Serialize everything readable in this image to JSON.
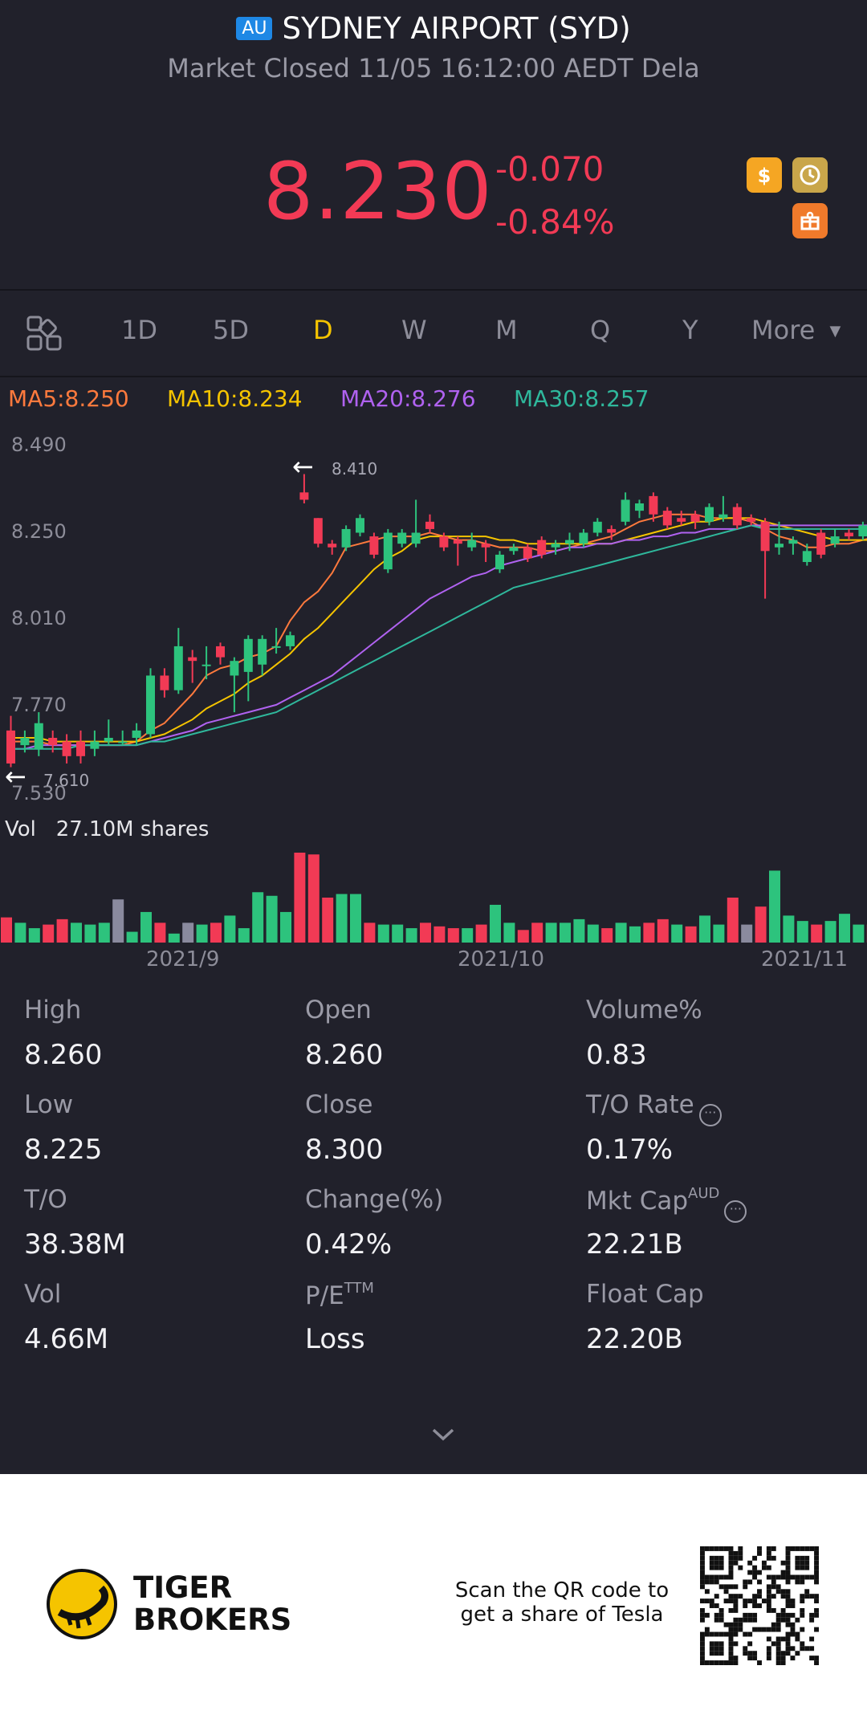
{
  "header": {
    "market_badge": "AU",
    "title": "SYDNEY AIRPORT (SYD)",
    "subtitle": "Market Closed 11/05 16:12:00 AEDT Dela"
  },
  "quote": {
    "price": "8.230",
    "change": "-0.070",
    "change_pct": "-0.84%",
    "icons": [
      "dollar-icon",
      "history-icon",
      "gift-icon"
    ]
  },
  "tabs": {
    "layout_icon": "grid-icon",
    "items": [
      "1D",
      "5D",
      "D",
      "W",
      "M",
      "Q",
      "Y"
    ],
    "active": "D",
    "more_label": "More"
  },
  "indicators": [
    {
      "label": "MA5:8.250",
      "color": "#ff7a3d"
    },
    {
      "label": "MA10:8.234",
      "color": "#f5c400"
    },
    {
      "label": "MA20:8.276",
      "color": "#b062f0"
    },
    {
      "label": "MA30:8.257",
      "color": "#2fb89c"
    }
  ],
  "chart_data": {
    "type": "candlestick",
    "title": "",
    "y_ticks": [
      "8.490",
      "8.250",
      "8.010",
      "7.770",
      "7.530"
    ],
    "ylim": [
      7.53,
      8.49
    ],
    "x_ticks": [
      "2021/9",
      "2021/10",
      "2021/11"
    ],
    "max_label": "8.410",
    "min_label": "7.610",
    "colors": {
      "up": "#2dc37d",
      "down": "#f23a55",
      "flat": "#8a8a9e"
    },
    "candles": [
      {
        "o": 7.71,
        "c": 7.62,
        "h": 7.75,
        "l": 7.61
      },
      {
        "o": 7.67,
        "c": 7.69,
        "h": 7.71,
        "l": 7.65
      },
      {
        "o": 7.66,
        "c": 7.73,
        "h": 7.76,
        "l": 7.64
      },
      {
        "o": 7.69,
        "c": 7.67,
        "h": 7.71,
        "l": 7.65
      },
      {
        "o": 7.68,
        "c": 7.64,
        "h": 7.7,
        "l": 7.62
      },
      {
        "o": 7.68,
        "c": 7.64,
        "h": 7.71,
        "l": 7.62
      },
      {
        "o": 7.66,
        "c": 7.68,
        "h": 7.71,
        "l": 7.64
      },
      {
        "o": 7.68,
        "c": 7.69,
        "h": 7.74,
        "l": 7.67
      },
      {
        "o": 7.68,
        "c": 7.68,
        "h": 7.71,
        "l": 7.67
      },
      {
        "o": 7.69,
        "c": 7.71,
        "h": 7.73,
        "l": 7.67
      },
      {
        "o": 7.7,
        "c": 7.86,
        "h": 7.88,
        "l": 7.69
      },
      {
        "o": 7.86,
        "c": 7.82,
        "h": 7.88,
        "l": 7.8
      },
      {
        "o": 7.82,
        "c": 7.94,
        "h": 7.99,
        "l": 7.81
      },
      {
        "o": 7.91,
        "c": 7.9,
        "h": 7.93,
        "l": 7.84
      },
      {
        "o": 7.89,
        "c": 7.89,
        "h": 7.94,
        "l": 7.85
      },
      {
        "o": 7.94,
        "c": 7.91,
        "h": 7.95,
        "l": 7.89
      },
      {
        "o": 7.86,
        "c": 7.9,
        "h": 7.91,
        "l": 7.76
      },
      {
        "o": 7.87,
        "c": 7.96,
        "h": 7.97,
        "l": 7.79
      },
      {
        "o": 7.89,
        "c": 7.96,
        "h": 7.97,
        "l": 7.86
      },
      {
        "o": 7.94,
        "c": 7.94,
        "h": 7.99,
        "l": 7.92
      },
      {
        "o": 7.94,
        "c": 7.97,
        "h": 7.98,
        "l": 7.93
      },
      {
        "o": 8.36,
        "c": 8.34,
        "h": 8.41,
        "l": 8.33
      },
      {
        "o": 8.29,
        "c": 8.22,
        "h": 8.29,
        "l": 8.21
      },
      {
        "o": 8.22,
        "c": 8.21,
        "h": 8.23,
        "l": 8.19
      },
      {
        "o": 8.21,
        "c": 8.26,
        "h": 8.27,
        "l": 8.2
      },
      {
        "o": 8.25,
        "c": 8.29,
        "h": 8.3,
        "l": 8.24
      },
      {
        "o": 8.24,
        "c": 8.19,
        "h": 8.25,
        "l": 8.18
      },
      {
        "o": 8.15,
        "c": 8.25,
        "h": 8.26,
        "l": 8.14
      },
      {
        "o": 8.22,
        "c": 8.25,
        "h": 8.26,
        "l": 8.21
      },
      {
        "o": 8.22,
        "c": 8.25,
        "h": 8.34,
        "l": 8.21
      },
      {
        "o": 8.28,
        "c": 8.26,
        "h": 8.3,
        "l": 8.25
      },
      {
        "o": 8.24,
        "c": 8.21,
        "h": 8.25,
        "l": 8.2
      },
      {
        "o": 8.23,
        "c": 8.22,
        "h": 8.24,
        "l": 8.16
      },
      {
        "o": 8.21,
        "c": 8.23,
        "h": 8.25,
        "l": 8.2
      },
      {
        "o": 8.22,
        "c": 8.21,
        "h": 8.23,
        "l": 8.17
      },
      {
        "o": 8.15,
        "c": 8.19,
        "h": 8.2,
        "l": 8.14
      },
      {
        "o": 8.2,
        "c": 8.21,
        "h": 8.22,
        "l": 8.19
      },
      {
        "o": 8.21,
        "c": 8.18,
        "h": 8.22,
        "l": 8.17
      },
      {
        "o": 8.23,
        "c": 8.19,
        "h": 8.24,
        "l": 8.18
      },
      {
        "o": 8.21,
        "c": 8.22,
        "h": 8.23,
        "l": 8.19
      },
      {
        "o": 8.22,
        "c": 8.23,
        "h": 8.25,
        "l": 8.2
      },
      {
        "o": 8.22,
        "c": 8.25,
        "h": 8.26,
        "l": 8.21
      },
      {
        "o": 8.25,
        "c": 8.28,
        "h": 8.29,
        "l": 8.24
      },
      {
        "o": 8.26,
        "c": 8.25,
        "h": 8.27,
        "l": 8.23
      },
      {
        "o": 8.28,
        "c": 8.34,
        "h": 8.36,
        "l": 8.27
      },
      {
        "o": 8.31,
        "c": 8.33,
        "h": 8.34,
        "l": 8.29
      },
      {
        "o": 8.35,
        "c": 8.3,
        "h": 8.36,
        "l": 8.28
      },
      {
        "o": 8.31,
        "c": 8.27,
        "h": 8.32,
        "l": 8.26
      },
      {
        "o": 8.29,
        "c": 8.28,
        "h": 8.31,
        "l": 8.27
      },
      {
        "o": 8.3,
        "c": 8.28,
        "h": 8.31,
        "l": 8.26
      },
      {
        "o": 8.28,
        "c": 8.32,
        "h": 8.33,
        "l": 8.27
      },
      {
        "o": 8.29,
        "c": 8.3,
        "h": 8.35,
        "l": 8.28
      },
      {
        "o": 8.32,
        "c": 8.27,
        "h": 8.33,
        "l": 8.26
      },
      {
        "o": 8.29,
        "c": 8.28,
        "h": 8.3,
        "l": 8.27
      },
      {
        "o": 8.28,
        "c": 8.2,
        "h": 8.29,
        "l": 8.07
      },
      {
        "o": 8.21,
        "c": 8.22,
        "h": 8.28,
        "l": 8.19
      },
      {
        "o": 8.22,
        "c": 8.23,
        "h": 8.24,
        "l": 8.19
      },
      {
        "o": 8.17,
        "c": 8.2,
        "h": 8.22,
        "l": 8.16
      },
      {
        "o": 8.25,
        "c": 8.19,
        "h": 8.26,
        "l": 8.18
      },
      {
        "o": 8.22,
        "c": 8.24,
        "h": 8.26,
        "l": 8.21
      },
      {
        "o": 8.25,
        "c": 8.24,
        "h": 8.26,
        "l": 8.23
      },
      {
        "o": 8.24,
        "c": 8.27,
        "h": 8.28,
        "l": 8.23
      },
      {
        "o": 8.25,
        "c": 8.23,
        "h": 8.26,
        "l": 8.22
      }
    ],
    "ma_series": [
      {
        "name": "MA5",
        "color": "#ff7a3d",
        "values": [
          7.68,
          7.68,
          7.68,
          7.67,
          7.67,
          7.67,
          7.67,
          7.67,
          7.67,
          7.68,
          7.71,
          7.73,
          7.77,
          7.81,
          7.86,
          7.88,
          7.89,
          7.91,
          7.92,
          7.94,
          8.01,
          8.06,
          8.09,
          8.14,
          8.21,
          8.22,
          8.23,
          8.24,
          8.24,
          8.24,
          8.25,
          8.24,
          8.23,
          8.23,
          8.22,
          8.21,
          8.21,
          8.21,
          8.2,
          8.2,
          8.21,
          8.22,
          8.23,
          8.24,
          8.26,
          8.28,
          8.29,
          8.3,
          8.3,
          8.3,
          8.29,
          8.29,
          8.29,
          8.28,
          8.26,
          8.24,
          8.23,
          8.21,
          8.21,
          8.22,
          8.22,
          8.23,
          8.24
        ]
      },
      {
        "name": "MA10",
        "color": "#f5c400",
        "values": [
          7.69,
          7.69,
          7.69,
          7.68,
          7.68,
          7.68,
          7.68,
          7.68,
          7.68,
          7.68,
          7.69,
          7.7,
          7.72,
          7.74,
          7.77,
          7.79,
          7.81,
          7.84,
          7.86,
          7.89,
          7.92,
          7.96,
          7.99,
          8.03,
          8.07,
          8.11,
          8.15,
          8.18,
          8.2,
          8.23,
          8.24,
          8.24,
          8.24,
          8.24,
          8.24,
          8.23,
          8.23,
          8.22,
          8.22,
          8.22,
          8.22,
          8.22,
          8.22,
          8.22,
          8.23,
          8.24,
          8.25,
          8.26,
          8.27,
          8.28,
          8.28,
          8.29,
          8.29,
          8.29,
          8.28,
          8.27,
          8.26,
          8.25,
          8.24,
          8.23,
          8.23,
          8.23,
          8.23
        ]
      },
      {
        "name": "MA20",
        "color": "#b062f0",
        "values": [
          7.66,
          7.66,
          7.67,
          7.67,
          7.67,
          7.67,
          7.67,
          7.67,
          7.67,
          7.67,
          7.68,
          7.69,
          7.7,
          7.71,
          7.73,
          7.74,
          7.75,
          7.76,
          7.77,
          7.78,
          7.8,
          7.82,
          7.84,
          7.86,
          7.89,
          7.92,
          7.95,
          7.98,
          8.01,
          8.04,
          8.07,
          8.09,
          8.11,
          8.13,
          8.14,
          8.16,
          8.17,
          8.18,
          8.19,
          8.2,
          8.21,
          8.21,
          8.22,
          8.22,
          8.23,
          8.23,
          8.24,
          8.24,
          8.25,
          8.25,
          8.26,
          8.26,
          8.26,
          8.27,
          8.27,
          8.27,
          8.27,
          8.27,
          8.27,
          8.27,
          8.27,
          8.27,
          8.27
        ]
      },
      {
        "name": "MA30",
        "color": "#2fb89c",
        "values": [
          7.66,
          7.66,
          7.66,
          7.66,
          7.66,
          7.67,
          7.67,
          7.67,
          7.67,
          7.67,
          7.68,
          7.68,
          7.69,
          7.7,
          7.71,
          7.72,
          7.73,
          7.74,
          7.75,
          7.76,
          7.78,
          7.8,
          7.82,
          7.84,
          7.86,
          7.88,
          7.9,
          7.92,
          7.94,
          7.96,
          7.98,
          8.0,
          8.02,
          8.04,
          8.06,
          8.08,
          8.1,
          8.11,
          8.12,
          8.13,
          8.14,
          8.15,
          8.16,
          8.17,
          8.18,
          8.19,
          8.2,
          8.21,
          8.22,
          8.23,
          8.24,
          8.25,
          8.26,
          8.27,
          8.26,
          8.26,
          8.26,
          8.26,
          8.26,
          8.26,
          8.26,
          8.26,
          8.26
        ]
      }
    ],
    "volume_label": "Vol",
    "volume_value": "27.10M shares",
    "volume": [
      0.28,
      0.22,
      0.16,
      0.2,
      0.26,
      0.22,
      0.2,
      0.22,
      0.48,
      0.12,
      0.34,
      0.22,
      0.1,
      0.22,
      0.2,
      0.22,
      0.3,
      0.16,
      0.56,
      0.52,
      0.34,
      1.0,
      0.98,
      0.5,
      0.54,
      0.54,
      0.22,
      0.2,
      0.2,
      0.16,
      0.22,
      0.18,
      0.16,
      0.16,
      0.2,
      0.42,
      0.22,
      0.14,
      0.22,
      0.22,
      0.22,
      0.26,
      0.2,
      0.16,
      0.22,
      0.18,
      0.22,
      0.26,
      0.2,
      0.18,
      0.3,
      0.2,
      0.5,
      0.2,
      0.4,
      0.8,
      0.3,
      0.24,
      0.2,
      0.24,
      0.32,
      0.2,
      0.2
    ],
    "volume_dir": [
      "d",
      "u",
      "u",
      "d",
      "d",
      "u",
      "u",
      "u",
      "f",
      "u",
      "u",
      "d",
      "u",
      "f",
      "u",
      "d",
      "u",
      "u",
      "u",
      "u",
      "u",
      "d",
      "d",
      "d",
      "u",
      "u",
      "d",
      "u",
      "u",
      "u",
      "d",
      "d",
      "d",
      "u",
      "d",
      "u",
      "u",
      "d",
      "d",
      "u",
      "u",
      "u",
      "u",
      "d",
      "u",
      "u",
      "d",
      "d",
      "u",
      "d",
      "u",
      "u",
      "d",
      "f",
      "d",
      "u",
      "u",
      "u",
      "d",
      "u",
      "u",
      "u",
      "d"
    ]
  },
  "stats": [
    {
      "label": "High",
      "value": "8.260"
    },
    {
      "label": "Open",
      "value": "8.260"
    },
    {
      "label": "Volume%",
      "value": "0.83"
    },
    {
      "label": "Low",
      "value": "8.225"
    },
    {
      "label": "Close",
      "value": "8.300"
    },
    {
      "label": "T/O Rate",
      "value": "0.17%"
    },
    {
      "label": "T/O",
      "value": "38.38M"
    },
    {
      "label": "Change(%)",
      "value": "0.42%"
    },
    {
      "label": "Mkt Cap",
      "sup": "AUD",
      "value": "22.21B"
    },
    {
      "label": "Vol",
      "value": "4.66M"
    },
    {
      "label": "P/E",
      "sup": "TTM",
      "value": "Loss"
    },
    {
      "label": "Float Cap",
      "value": "22.20B"
    }
  ],
  "expand_icon": "chevron-down-icon",
  "footer": {
    "brand_line1": "TIGER",
    "brand_line2": "BROKERS",
    "scan_line1": "Scan the QR code to",
    "scan_line2": "get a share of Tesla"
  }
}
